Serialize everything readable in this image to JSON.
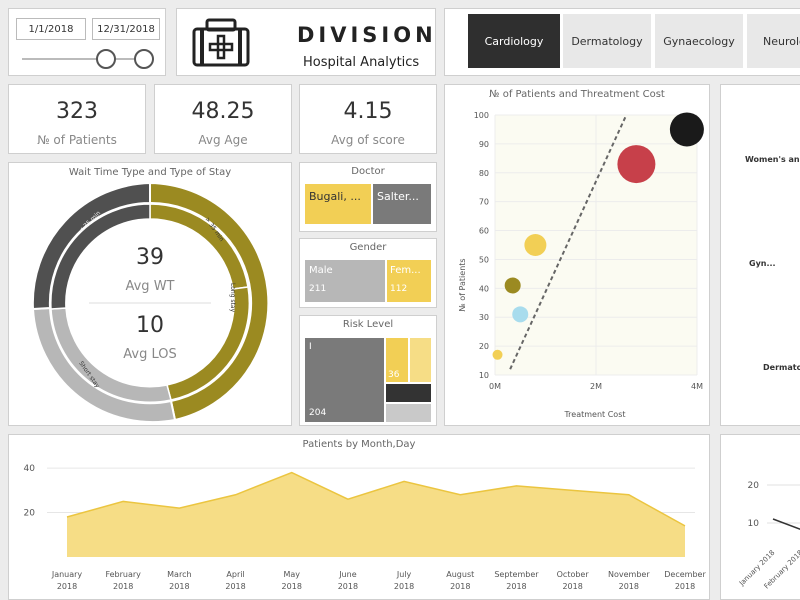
{
  "date_slicer": {
    "start": "1/1/2018",
    "end": "12/31/2018"
  },
  "brand": {
    "title": "DIVISION",
    "subtitle": "Hospital Analytics"
  },
  "tabs": [
    {
      "label": "Cardiology",
      "active": true
    },
    {
      "label": "Dermatology",
      "active": false
    },
    {
      "label": "Gynaecology",
      "active": false
    },
    {
      "label": "Neurology",
      "active": false
    }
  ],
  "kpis": [
    {
      "value": "323",
      "label": "№ of Patients"
    },
    {
      "value": "48.25",
      "label": "Avg Age"
    },
    {
      "value": "4.15",
      "label": "Avg of score"
    }
  ],
  "donut": {
    "title": "Wait Time Type and Type of Stay",
    "avg_wt_value": "39",
    "avg_wt_label": "Avg WT",
    "avg_los_value": "10",
    "avg_los_label": "Avg LOS",
    "segment_labels": [
      "< 35 min",
      "> 35 min",
      "Long stay",
      "Short stay"
    ]
  },
  "doctor": {
    "title": "Doctor",
    "items": [
      "Bugali, ...",
      "Salter..."
    ]
  },
  "gender": {
    "title": "Gender",
    "items": [
      {
        "label": "Male",
        "value": "211"
      },
      {
        "label": "Fem...",
        "value": "112"
      }
    ]
  },
  "risk": {
    "title": "Risk Level",
    "labels": {
      "large": "I",
      "large_value": "204",
      "small": "36"
    }
  },
  "scatter": {
    "title": "№ of Patients and Threatment Cost",
    "chart_data": {
      "type": "scatter",
      "xlabel": "Treatment Cost",
      "ylabel": "№ of Patients",
      "xlim": [
        0,
        4000000
      ],
      "ylim": [
        10,
        100
      ],
      "x_ticks": [
        "0M",
        "2M",
        "4M"
      ],
      "y_ticks": [
        "10",
        "20",
        "30",
        "40",
        "50",
        "60",
        "70",
        "80",
        "90",
        "100"
      ],
      "points": [
        {
          "x": 50000,
          "y": 17,
          "size": 5,
          "color": "#f2cf55"
        },
        {
          "x": 500000,
          "y": 31,
          "size": 8,
          "color": "#a8dced"
        },
        {
          "x": 350000,
          "y": 41,
          "size": 8,
          "color": "#9b8a21"
        },
        {
          "x": 800000,
          "y": 55,
          "size": 11,
          "color": "#f2cf55"
        },
        {
          "x": 2800000,
          "y": 83,
          "size": 19,
          "color": "#c7404a"
        },
        {
          "x": 3800000,
          "y": 95,
          "size": 17,
          "color": "#1a1a1a"
        }
      ],
      "trend": [
        {
          "x": 300000,
          "y": 12
        },
        {
          "x": 2600000,
          "y": 100
        }
      ]
    }
  },
  "right_panel": {
    "labels": [
      "Women's and...",
      "Gyn...",
      "Dermato..."
    ]
  },
  "area": {
    "title": "Patients by Month,Day",
    "chart_data": {
      "type": "area",
      "categories": [
        "January 2018",
        "February 2018",
        "March 2018",
        "April 2018",
        "May 2018",
        "June 2018",
        "July 2018",
        "August 2018",
        "September 2018",
        "October 2018",
        "November 2018",
        "December 2018"
      ],
      "values": [
        18,
        25,
        22,
        28,
        38,
        26,
        34,
        28,
        32,
        30,
        28,
        14
      ],
      "ylim": [
        0,
        45
      ],
      "y_ticks": [
        "20",
        "40"
      ]
    }
  },
  "bottom_right": {
    "y_ticks": [
      "10",
      "20"
    ],
    "x_labels": [
      "January 2018",
      "February 2018"
    ]
  },
  "colors": {
    "gold": "#f2cf55",
    "olive": "#9b8a21",
    "dark": "#505050",
    "gray": "#b7b7b7",
    "area_fill": "#f6dd86",
    "area_line": "#ebc540"
  }
}
